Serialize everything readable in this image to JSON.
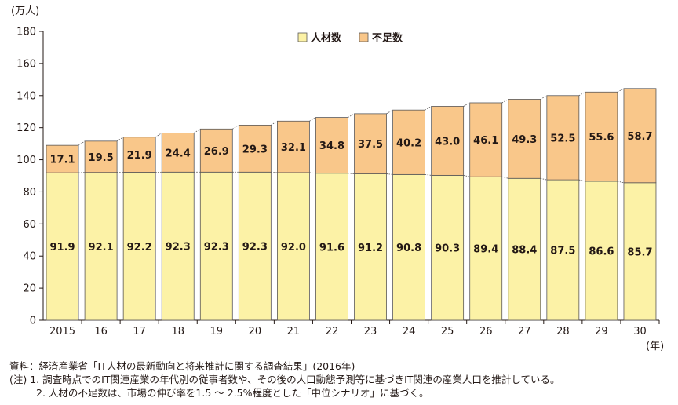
{
  "chart_data": {
    "type": "bar",
    "stacked": true,
    "y_unit": "(万人)",
    "x_unit": "(年)",
    "ylim": [
      0,
      180
    ],
    "yticks": [
      0,
      20,
      40,
      60,
      80,
      100,
      120,
      140,
      160,
      180
    ],
    "categories": [
      "2015",
      "16",
      "17",
      "18",
      "19",
      "20",
      "21",
      "22",
      "23",
      "24",
      "25",
      "26",
      "27",
      "28",
      "29",
      "30"
    ],
    "series": [
      {
        "name": "人材数",
        "color": "#fcf2a6",
        "values": [
          91.9,
          92.1,
          92.2,
          92.3,
          92.3,
          92.3,
          92.0,
          91.6,
          91.2,
          90.8,
          90.3,
          89.4,
          88.4,
          87.5,
          86.6,
          85.7
        ],
        "labels": [
          "91.9",
          "92.1",
          "92.2",
          "92.3",
          "92.3",
          "92.3",
          "92.0",
          "91.6",
          "91.2",
          "90.8",
          "90.3",
          "89.4",
          "88.4",
          "87.5",
          "86.6",
          "85.7"
        ]
      },
      {
        "name": "不足数",
        "color": "#f9c78a",
        "values": [
          17.1,
          19.5,
          21.9,
          24.4,
          26.9,
          29.3,
          32.1,
          34.8,
          37.5,
          40.2,
          43.0,
          46.1,
          49.3,
          52.5,
          55.6,
          58.7
        ],
        "labels": [
          "17.1",
          "19.5",
          "21.9",
          "24.4",
          "26.9",
          "29.3",
          "32.1",
          "34.8",
          "37.5",
          "40.2",
          "43.0",
          "46.1",
          "49.3",
          "52.5",
          "55.6",
          "58.7"
        ]
      }
    ],
    "legend_position": "top-center",
    "grid": false
  },
  "notes": {
    "source": "資料：経済産業省「IT人材の最新動向と将来推計に関する調査結果」(2016年)",
    "note1": "(注) 1. 調査時点でのIT関連産業の年代別の従事者数や、その後の人口動態予測等に基づきIT関連の産業人口を推計している。",
    "note2": "2. 人材の不足数は、市場の伸び率を1.5 ～ 2.5%程度とした「中位シナリオ」に基づく。"
  }
}
